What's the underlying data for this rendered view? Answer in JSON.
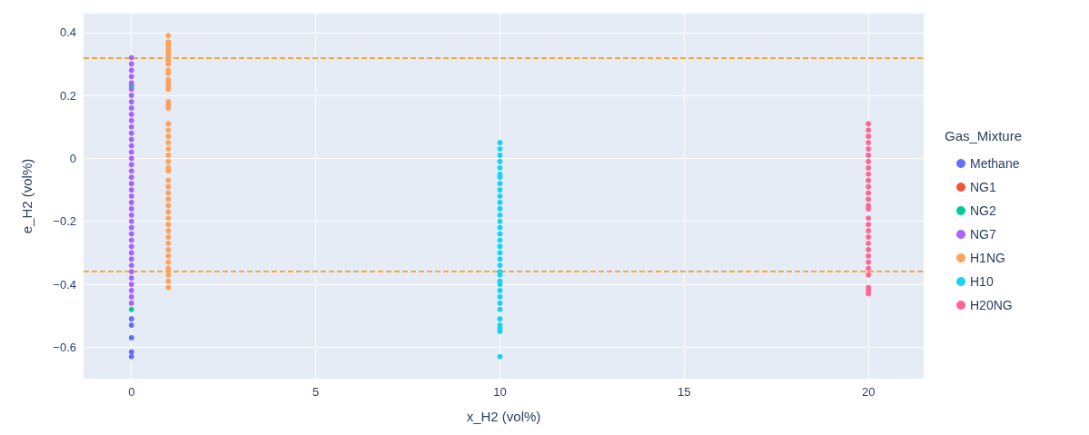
{
  "chart_data": {
    "type": "scatter",
    "xlabel": "x_H2 (vol%)",
    "ylabel": "e_H2 (vol%)",
    "legend_title": "Gas_Mixture",
    "legend": "right",
    "grid": true,
    "marker": "circle",
    "xlim": [
      -1.3,
      21.5
    ],
    "xticks": [
      0,
      5,
      10,
      15,
      20
    ],
    "ylim": [
      -0.7,
      0.46
    ],
    "yticks": [
      {
        "value": -0.6,
        "label": "−0.6"
      },
      {
        "value": -0.4,
        "label": "−0.4"
      },
      {
        "value": -0.2,
        "label": "−0.2"
      },
      0,
      0.2,
      0.4
    ],
    "ref_lines": [
      {
        "axis": "y",
        "value": 0.32,
        "color": "#ff8c00",
        "line_style": "dashed"
      },
      {
        "axis": "y",
        "value": -0.36,
        "color": "#ff8c00",
        "line_style": "dashed"
      }
    ],
    "series": [
      {
        "name": "Methane",
        "color": "#636efa",
        "x": [
          0,
          0,
          0,
          0,
          0
        ],
        "values": [
          -0.51,
          -0.53,
          -0.57,
          -0.615,
          -0.63
        ]
      },
      {
        "name": "NG1",
        "color": "#ef553b"
      },
      {
        "name": "NG2",
        "color": "#00cc96",
        "x": [
          0,
          0
        ],
        "values": [
          0.23,
          -0.48
        ]
      },
      {
        "name": "NG7",
        "color": "#ab63fa",
        "x": [
          0,
          0,
          0,
          0,
          0,
          0,
          0,
          0,
          0,
          0,
          0,
          0,
          0,
          0,
          0,
          0,
          0,
          0,
          0,
          0,
          0,
          0,
          0,
          0,
          0,
          0,
          0,
          0,
          0,
          0,
          0,
          0,
          0,
          0,
          0,
          0,
          0,
          0,
          0,
          0
        ],
        "values": [
          0.32,
          0.3,
          0.28,
          0.26,
          0.24,
          0.22,
          0.2,
          0.18,
          0.16,
          0.14,
          0.12,
          0.1,
          0.08,
          0.06,
          0.04,
          0.02,
          0,
          -0.02,
          -0.04,
          -0.06,
          -0.08,
          -0.1,
          -0.12,
          -0.14,
          -0.16,
          -0.18,
          -0.2,
          -0.22,
          -0.24,
          -0.26,
          -0.28,
          -0.3,
          -0.32,
          -0.34,
          -0.36,
          -0.38,
          -0.4,
          -0.42,
          -0.44,
          -0.46
        ]
      },
      {
        "name": "H1NG",
        "color": "#ffa15a",
        "x": [
          1,
          1,
          1,
          1,
          1,
          1,
          1,
          1,
          1,
          1,
          1,
          1,
          1,
          1,
          1,
          1,
          1,
          1,
          1,
          1,
          1,
          1,
          1,
          1,
          1,
          1,
          1,
          1,
          1,
          1,
          1,
          1,
          1,
          1,
          1,
          1,
          1,
          1,
          1,
          1,
          1,
          1,
          1,
          1,
          1
        ],
        "values": [
          0.39,
          0.37,
          0.36,
          0.35,
          0.34,
          0.33,
          0.32,
          0.31,
          0.3,
          0.28,
          0.27,
          0.25,
          0.24,
          0.23,
          0.22,
          0.18,
          0.17,
          0.16,
          0.11,
          0.09,
          0.07,
          0.05,
          0.03,
          0.01,
          -0.01,
          -0.03,
          -0.04,
          -0.07,
          -0.09,
          -0.11,
          -0.13,
          -0.15,
          -0.17,
          -0.19,
          -0.21,
          -0.23,
          -0.25,
          -0.27,
          -0.29,
          -0.31,
          -0.33,
          -0.35,
          -0.37,
          -0.39,
          -0.41
        ]
      },
      {
        "name": "H10",
        "color": "#19d3f3",
        "x": [
          10,
          10,
          10,
          10,
          10,
          10,
          10,
          10,
          10,
          10,
          10,
          10,
          10,
          10,
          10,
          10,
          10,
          10,
          10,
          10,
          10,
          10,
          10,
          10,
          10,
          10,
          10,
          10,
          10,
          10,
          10,
          10,
          10,
          10
        ],
        "values": [
          0.05,
          0.03,
          0.01,
          -0.01,
          -0.03,
          -0.05,
          -0.06,
          -0.08,
          -0.1,
          -0.12,
          -0.14,
          -0.16,
          -0.18,
          -0.2,
          -0.22,
          -0.24,
          -0.26,
          -0.28,
          -0.3,
          -0.32,
          -0.34,
          -0.36,
          -0.37,
          -0.39,
          -0.4,
          -0.42,
          -0.44,
          -0.46,
          -0.48,
          -0.51,
          -0.53,
          -0.54,
          -0.55,
          -0.63
        ]
      },
      {
        "name": "H20NG",
        "color": "#ff6692",
        "x": [
          20,
          20,
          20,
          20,
          20,
          20,
          20,
          20,
          20,
          20,
          20,
          20,
          20,
          20,
          20,
          20,
          20,
          20,
          20,
          20,
          20,
          20,
          20,
          20,
          20,
          20,
          20,
          20
        ],
        "values": [
          0.11,
          0.09,
          0.07,
          0.05,
          0.03,
          0.01,
          -0.01,
          -0.03,
          -0.05,
          -0.07,
          -0.09,
          -0.11,
          -0.13,
          -0.15,
          -0.16,
          -0.19,
          -0.21,
          -0.23,
          -0.25,
          -0.27,
          -0.29,
          -0.31,
          -0.33,
          -0.35,
          -0.37,
          -0.41,
          -0.42,
          -0.43
        ]
      }
    ]
  }
}
